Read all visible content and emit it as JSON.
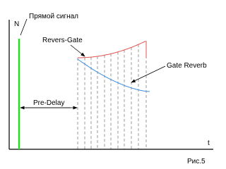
{
  "axes": {
    "y_label": "N",
    "x_label": "t"
  },
  "labels": {
    "direct": "Прямой сигнал",
    "reverse_gate": "Revers-Gate",
    "gate_reverb": "Gate Reverb",
    "pre_delay": "Pre-Delay"
  },
  "caption": "Рис.5"
}
